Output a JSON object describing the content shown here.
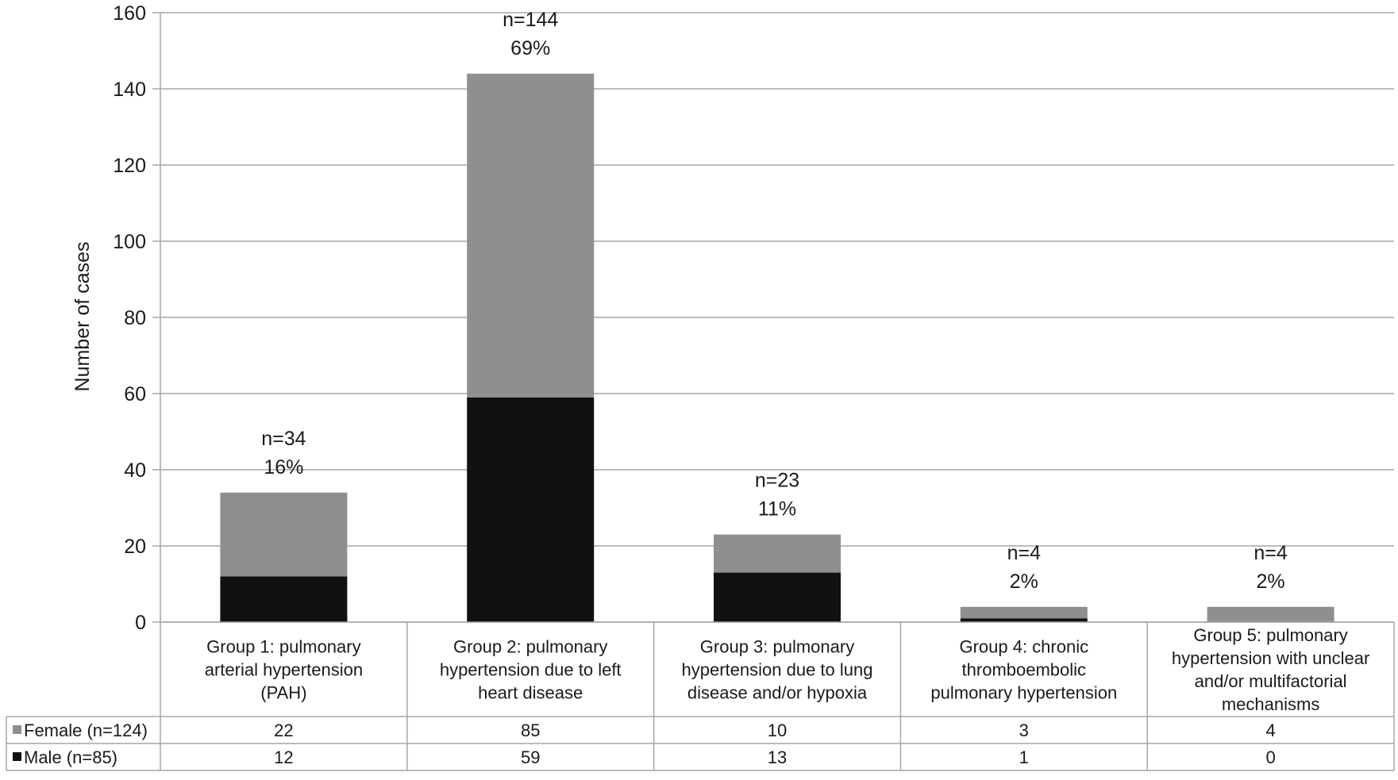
{
  "chart_data": {
    "type": "bar",
    "stacked": true,
    "ylabel": "Number of cases",
    "ylim": [
      0,
      160
    ],
    "yticks": [
      0,
      20,
      40,
      60,
      80,
      100,
      120,
      140,
      160
    ],
    "grid": true,
    "legend_placement": "data table rows",
    "categories": [
      [
        "Group 1: pulmonary",
        "arterial hypertension",
        "(PAH)"
      ],
      [
        "Group 2: pulmonary",
        "hypertension due to left",
        "heart disease"
      ],
      [
        "Group 3: pulmonary",
        "hypertension due to lung",
        "disease and/or hypoxia"
      ],
      [
        "Group 4: chronic",
        "thromboembolic",
        "pulmonary hypertension"
      ],
      [
        "Group 5: pulmonary",
        "hypertension with unclear",
        "and/or multifactorial",
        "mechanisms"
      ]
    ],
    "series": [
      {
        "name": "Male (n=85)",
        "values": [
          12,
          59,
          13,
          1,
          0
        ],
        "color": "#111111"
      },
      {
        "name": "Female (n=124)",
        "values": [
          22,
          85,
          10,
          3,
          4
        ],
        "color": "#8f8f8f"
      }
    ],
    "table_order": [
      1,
      0
    ],
    "annotations": [
      {
        "n": "n=34",
        "pct": "16%",
        "total": 34
      },
      {
        "n": "n=144",
        "pct": "69%",
        "total": 144
      },
      {
        "n": "n=23",
        "pct": "11%",
        "total": 23
      },
      {
        "n": "n=4",
        "pct": "2%",
        "total": 4
      },
      {
        "n": "n=4",
        "pct": "2%",
        "total": 4
      }
    ]
  }
}
